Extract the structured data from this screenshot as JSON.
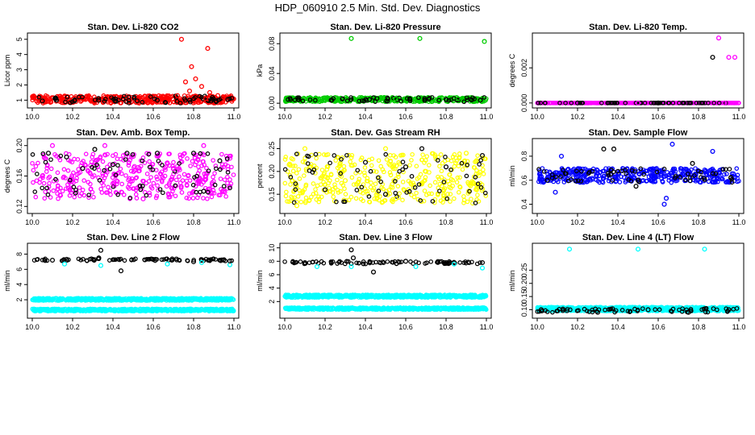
{
  "page": {
    "title": "HDP_060910  2.5 Min. Std. Dev. Diagnostics"
  },
  "colors": {
    "red": "#ff0000",
    "green": "#00cc00",
    "magenta": "#ff00ff",
    "yellow": "#ffff00",
    "blue": "#0000ff",
    "cyan": "#00ffff",
    "black": "#000000"
  },
  "chart_data": [
    {
      "type": "scatter",
      "title": "Stan. Dev. Li-820 CO2",
      "ylabel": "Licor ppm",
      "xlim": [
        10.0,
        11.0
      ],
      "ylim": [
        0.7,
        5.2
      ],
      "xticks": [
        "10.0",
        "10.2",
        "10.4",
        "10.6",
        "10.8",
        "11.0"
      ],
      "yticks": [
        "1",
        "2",
        "3",
        "4",
        "5"
      ],
      "grid": false,
      "series": [
        {
          "color": "#ff0000",
          "points": [
            [
              10.74,
              5.0
            ],
            [
              10.87,
              4.4
            ],
            [
              10.79,
              3.2
            ],
            [
              10.76,
              2.2
            ],
            [
              10.81,
              2.4
            ],
            [
              10.84,
              1.9
            ],
            [
              10.78,
              1.6
            ],
            [
              10.88,
              1.5
            ],
            [
              10.92,
              1.3
            ],
            [
              10.95,
              1.2
            ],
            [
              10.72,
              1.3
            ],
            [
              10.86,
              1.1
            ]
          ]
        },
        {
          "color": "#000000",
          "points": [
            [
              10.05,
              0.95
            ],
            [
              10.12,
              1.0
            ],
            [
              10.21,
              0.95
            ],
            [
              10.33,
              1.0
            ],
            [
              10.41,
              0.95
            ],
            [
              10.52,
              0.95
            ],
            [
              10.62,
              1.0
            ],
            [
              10.78,
              1.0
            ],
            [
              10.91,
              0.95
            ],
            [
              10.97,
              1.05
            ]
          ]
        }
      ]
    },
    {
      "type": "scatter",
      "title": "Stan. Dev. Li-820 Pressure",
      "ylabel": "kPa",
      "xlim": [
        10.0,
        11.0
      ],
      "ylim": [
        -0.002,
        0.09
      ],
      "xticks": [
        "10.0",
        "10.2",
        "10.4",
        "10.6",
        "10.8",
        "11.0"
      ],
      "yticks": [
        "0.00",
        "0.04",
        "0.08"
      ],
      "grid": false,
      "series": [
        {
          "color": "#00cc00",
          "points": [
            [
              10.33,
              0.087
            ],
            [
              10.67,
              0.087
            ],
            [
              10.99,
              0.083
            ],
            [
              10.2,
              0.007
            ],
            [
              10.55,
              0.006
            ],
            [
              10.86,
              0.006
            ]
          ]
        },
        {
          "color": "#000000",
          "points": [
            [
              10.07,
              0.005
            ],
            [
              10.23,
              0.004
            ],
            [
              10.42,
              0.005
            ],
            [
              10.62,
              0.006
            ],
            [
              10.8,
              0.005
            ],
            [
              10.97,
              0.004
            ]
          ]
        }
      ]
    },
    {
      "type": "scatter",
      "title": "Stan. Dev. Li-820 Temp.",
      "ylabel": "degrees C",
      "xlim": [
        10.0,
        11.0
      ],
      "ylim": [
        -0.0001,
        0.0038
      ],
      "xticks": [
        "10.0",
        "10.2",
        "10.4",
        "10.6",
        "10.8",
        "11.0"
      ],
      "yticks": [
        "0.000",
        "0.002"
      ],
      "grid": false,
      "series": [
        {
          "color": "#ff00ff",
          "points": [
            [
              10.9,
              0.0037
            ],
            [
              10.95,
              0.0026
            ],
            [
              10.98,
              0.0026
            ],
            [
              10.93,
              0.0
            ],
            [
              10.5,
              0.0
            ]
          ]
        },
        {
          "color": "#000000",
          "points": [
            [
              10.87,
              0.0026
            ],
            [
              10.2,
              0.0
            ],
            [
              10.6,
              0.0
            ]
          ]
        }
      ]
    },
    {
      "type": "scatter",
      "title": "Stan. Dev. Amb. Box Temp.",
      "ylabel": "degrees C",
      "xlim": [
        10.0,
        11.0
      ],
      "ylim": [
        0.115,
        0.205
      ],
      "xticks": [
        "10.0",
        "10.2",
        "10.4",
        "10.6",
        "10.8",
        "11.0"
      ],
      "yticks": [
        "0.12",
        "0.16",
        "0.20"
      ],
      "grid": false,
      "series": [
        {
          "color": "#ff00ff",
          "points": [
            [
              10.1,
              0.2
            ],
            [
              10.36,
              0.2
            ],
            [
              10.85,
              0.2
            ],
            [
              10.05,
              0.16
            ],
            [
              10.4,
              0.15
            ],
            [
              10.7,
              0.17
            ],
            [
              10.55,
              0.13
            ],
            [
              10.95,
              0.14
            ]
          ]
        },
        {
          "color": "#000000",
          "points": [
            [
              10.08,
              0.19
            ],
            [
              10.17,
              0.185
            ],
            [
              10.31,
              0.195
            ],
            [
              10.47,
              0.19
            ],
            [
              10.62,
              0.19
            ],
            [
              10.8,
              0.19
            ],
            [
              10.93,
              0.18
            ],
            [
              10.4,
              0.175
            ],
            [
              10.25,
              0.17
            ],
            [
              10.85,
              0.14
            ]
          ]
        }
      ]
    },
    {
      "type": "scatter",
      "title": "Stan. Dev. Gas Stream RH",
      "ylabel": "percent",
      "xlim": [
        10.0,
        11.0
      ],
      "ylim": [
        0.115,
        0.265
      ],
      "xticks": [
        "10.0",
        "10.2",
        "10.4",
        "10.6",
        "10.8",
        "11.0"
      ],
      "yticks": [
        "0.15",
        "0.20",
        "0.25"
      ],
      "grid": false,
      "series": [
        {
          "color": "#ffff00",
          "points": [
            [
              10.1,
              0.25
            ],
            [
              10.5,
              0.25
            ],
            [
              10.9,
              0.24
            ],
            [
              10.06,
              0.125
            ],
            [
              10.3,
              0.18
            ],
            [
              10.7,
              0.2
            ],
            [
              10.55,
              0.14
            ]
          ]
        },
        {
          "color": "#000000",
          "points": [
            [
              10.68,
              0.25
            ],
            [
              10.98,
              0.235
            ],
            [
              10.4,
              0.22
            ],
            [
              10.6,
              0.21
            ],
            [
              10.8,
              0.21
            ],
            [
              10.2,
              0.16
            ],
            [
              10.5,
              0.15
            ]
          ]
        }
      ]
    },
    {
      "type": "scatter",
      "title": "Stan. Dev. Sample Flow",
      "ylabel": "ml/min",
      "xlim": [
        10.0,
        11.0
      ],
      "ylim": [
        0.35,
        0.92
      ],
      "xticks": [
        "10.0",
        "10.2",
        "10.4",
        "10.6",
        "10.8",
        "11.0"
      ],
      "yticks": [
        "0.4",
        "0.6",
        "0.8"
      ],
      "grid": false,
      "series": [
        {
          "color": "#0000ff",
          "points": [
            [
              10.67,
              0.9
            ],
            [
              10.12,
              0.8
            ],
            [
              10.87,
              0.84
            ],
            [
              10.64,
              0.45
            ],
            [
              10.63,
              0.4
            ],
            [
              10.09,
              0.5
            ],
            [
              10.5,
              0.6
            ]
          ]
        },
        {
          "color": "#000000",
          "points": [
            [
              10.33,
              0.86
            ],
            [
              10.38,
              0.86
            ],
            [
              10.49,
              0.55
            ],
            [
              10.77,
              0.74
            ],
            [
              10.5,
              0.6
            ],
            [
              10.05,
              0.6
            ],
            [
              10.96,
              0.62
            ]
          ]
        }
      ]
    },
    {
      "type": "scatter",
      "title": "Stan. Dev. Line 2 Flow",
      "ylabel": "ml/min",
      "xlim": [
        10.0,
        11.0
      ],
      "ylim": [
        0.0,
        9.0
      ],
      "xticks": [
        "10.0",
        "10.2",
        "10.4",
        "10.6",
        "10.8",
        "11.0"
      ],
      "yticks": [
        "2",
        "4",
        "6",
        "8"
      ],
      "grid": false,
      "series": [
        {
          "color": "#00ffff",
          "points": [
            [
              10.16,
              6.7
            ],
            [
              10.34,
              6.5
            ],
            [
              10.67,
              6.7
            ],
            [
              10.84,
              6.9
            ],
            [
              10.98,
              6.6
            ]
          ]
        },
        {
          "color": "#000000",
          "points": [
            [
              10.34,
              8.5
            ],
            [
              10.44,
              5.8
            ],
            [
              10.33,
              7.5
            ],
            [
              10.1,
              7.2
            ],
            [
              10.6,
              7.3
            ],
            [
              10.8,
              7.0
            ],
            [
              10.98,
              7.1
            ]
          ]
        }
      ]
    },
    {
      "type": "scatter",
      "title": "Stan. Dev. Line 3 Flow",
      "ylabel": "ml/min",
      "xlim": [
        10.0,
        11.0
      ],
      "ylim": [
        0.0,
        10.2
      ],
      "xticks": [
        "10.0",
        "10.2",
        "10.4",
        "10.6",
        "10.8",
        "11.0"
      ],
      "yticks": [
        "2",
        "4",
        "6",
        "8",
        "10"
      ],
      "grid": false,
      "series": [
        {
          "color": "#00ffff",
          "points": [
            [
              10.16,
              7.2
            ],
            [
              10.33,
              7.2
            ],
            [
              10.65,
              7.2
            ],
            [
              10.84,
              7.6
            ],
            [
              10.98,
              7.0
            ]
          ]
        },
        {
          "color": "#000000",
          "points": [
            [
              10.33,
              9.7
            ],
            [
              10.44,
              6.4
            ],
            [
              10.34,
              8.5
            ],
            [
              10.1,
              7.8
            ],
            [
              10.6,
              8.0
            ],
            [
              10.8,
              7.8
            ],
            [
              10.98,
              7.8
            ]
          ]
        }
      ]
    },
    {
      "type": "scatter",
      "title": "Stan. Dev. Line 4 (LT) Flow",
      "ylabel": "ml/min",
      "xlim": [
        10.0,
        11.0
      ],
      "ylim": [
        0.08,
        0.34
      ],
      "xticks": [
        "10.0",
        "10.2",
        "10.4",
        "10.6",
        "10.8",
        "11.0"
      ],
      "yticks": [
        "0.10",
        "0.15",
        "0.20",
        "0.25"
      ],
      "grid": false,
      "series": [
        {
          "color": "#00ffff",
          "points": [
            [
              10.16,
              0.33
            ],
            [
              10.5,
              0.33
            ],
            [
              10.83,
              0.33
            ]
          ]
        },
        {
          "color": "#000000",
          "points": [
            [
              10.02,
              0.1
            ],
            [
              10.3,
              0.09
            ],
            [
              10.55,
              0.1
            ],
            [
              10.75,
              0.09
            ],
            [
              10.95,
              0.1
            ]
          ]
        }
      ]
    }
  ]
}
